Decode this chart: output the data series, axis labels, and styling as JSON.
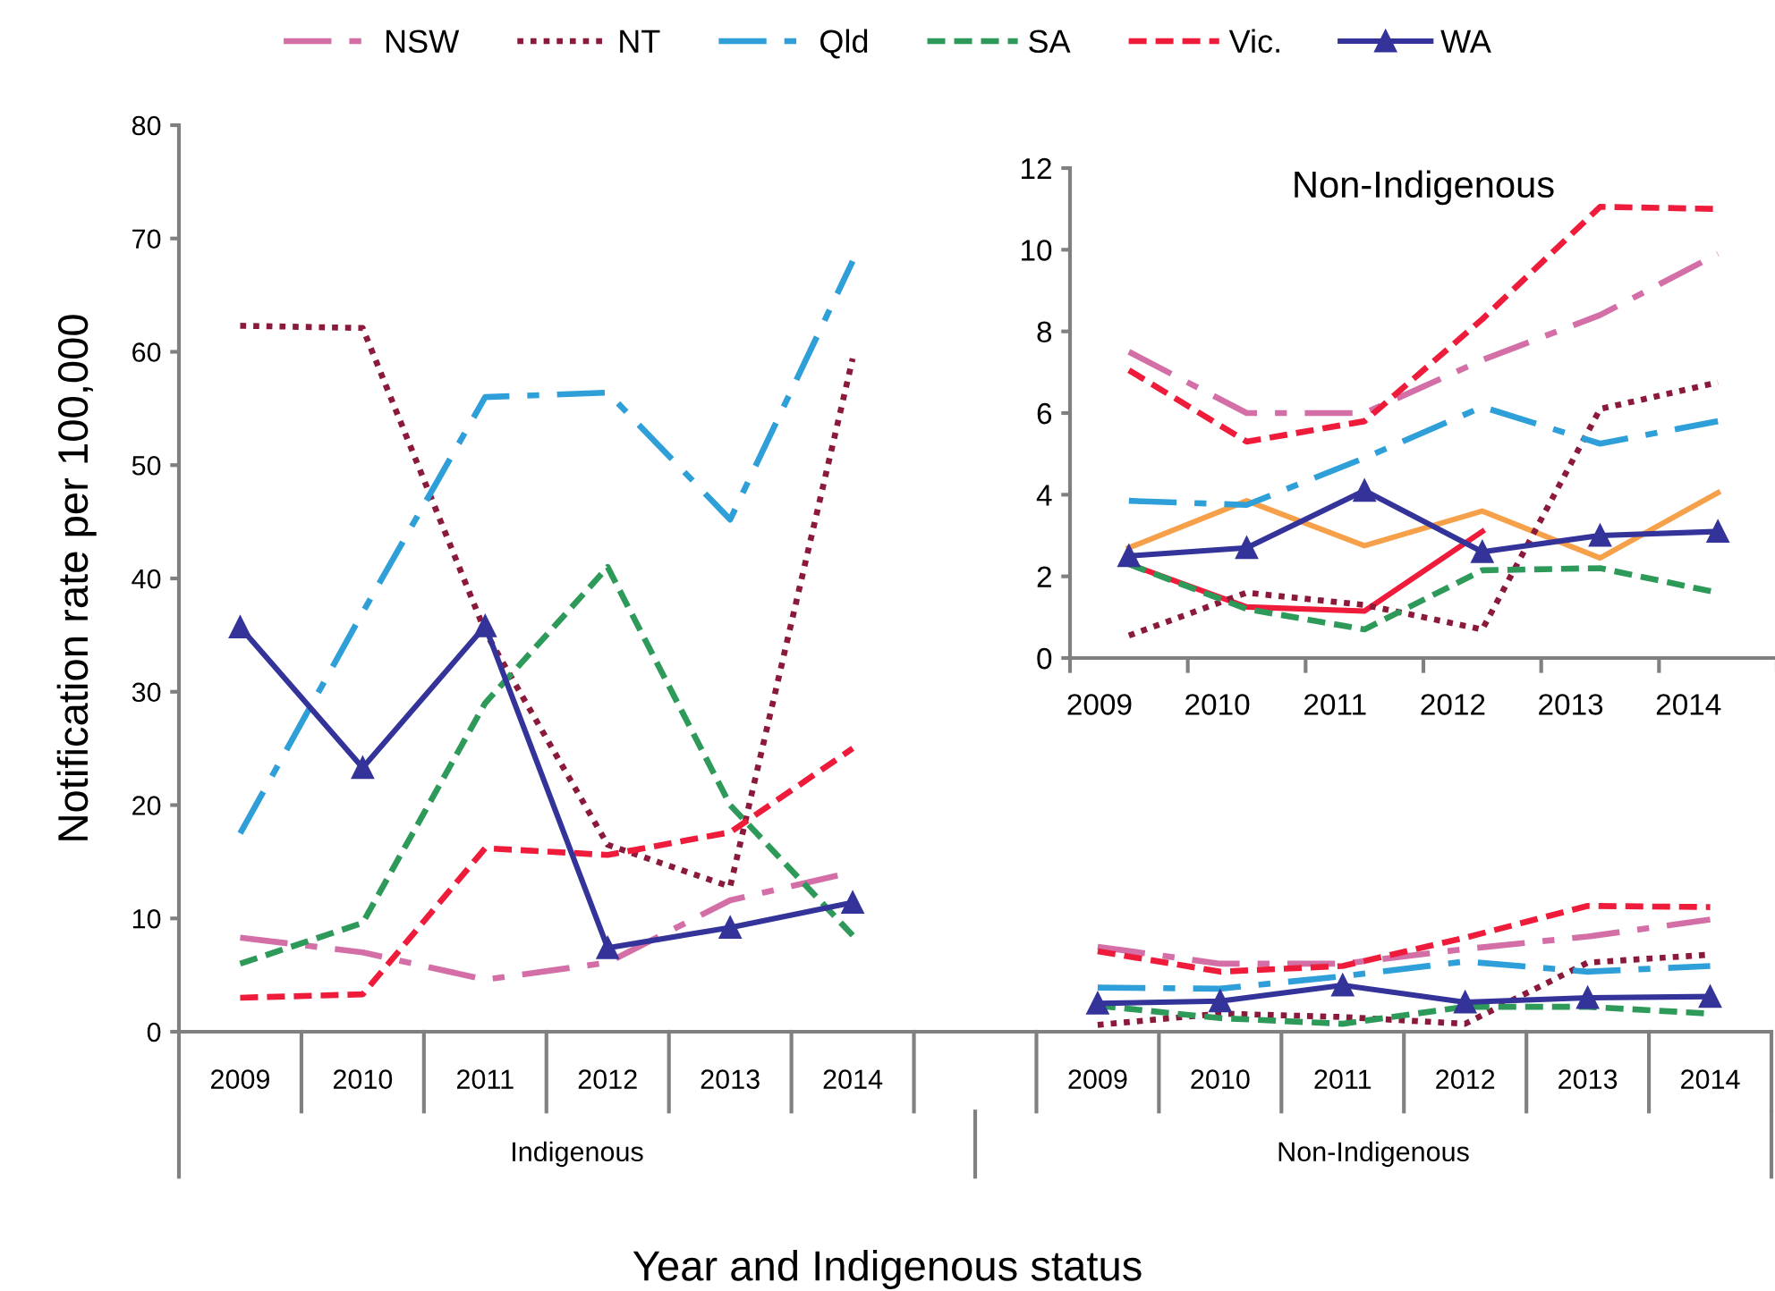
{
  "chart_data": [
    {
      "type": "line",
      "ylabel": "Notification rate per 100,000",
      "xlabel": "Year and Indigenous status",
      "categories": [
        "2009",
        "2010",
        "2011",
        "2012",
        "2013",
        "2014",
        null,
        "2009",
        "2010",
        "2011",
        "2012",
        "2013",
        "2014"
      ],
      "annotations": [
        "Indigenous",
        "Non-Indigenous"
      ],
      "ylim": [
        0,
        80
      ],
      "yticks": [
        0,
        10,
        20,
        30,
        40,
        50,
        60,
        70,
        80
      ],
      "legend": "top",
      "series": [
        {
          "name": "NSW",
          "color": "#d36ea7",
          "line_style": "dashdot",
          "values": [
            8.3,
            7.0,
            4.6,
            6.1,
            11.6,
            14.1,
            null,
            7.5,
            6.0,
            6.0,
            7.3,
            8.4,
            9.9
          ]
        },
        {
          "name": "NT",
          "color": "#8b1a3a",
          "line_style": "dotted",
          "values": [
            62.3,
            62.1,
            35.3,
            16.5,
            12.8,
            59.4,
            null,
            0.6,
            1.6,
            1.3,
            0.7,
            6.1,
            6.8
          ]
        },
        {
          "name": "Qld",
          "color": "#2e9fd8",
          "line_style": "dashdot",
          "values": [
            17.5,
            37.0,
            56.0,
            56.4,
            45.2,
            68.0,
            null,
            3.9,
            3.8,
            4.9,
            6.2,
            5.3,
            5.8
          ]
        },
        {
          "name": "SA",
          "color": "#2e9a5a",
          "line_style": "dashed",
          "values": [
            6.0,
            9.6,
            29.0,
            41.0,
            20.0,
            8.5,
            null,
            2.3,
            1.2,
            0.7,
            2.2,
            2.2,
            1.6
          ]
        },
        {
          "name": "Vic.",
          "color": "#ee1c3a",
          "line_style": "dashed",
          "values": [
            3.0,
            3.3,
            16.2,
            15.6,
            17.6,
            25.0,
            null,
            7.1,
            5.3,
            5.8,
            8.3,
            11.1,
            11.0
          ]
        },
        {
          "name": "WA",
          "color": "#33339a",
          "line_style": "solid",
          "marker": "triangle",
          "values": [
            35.7,
            23.3,
            35.8,
            7.4,
            9.2,
            11.4,
            null,
            2.5,
            2.7,
            4.1,
            2.6,
            3.0,
            3.1
          ]
        }
      ]
    },
    {
      "type": "line",
      "title": "Non-Indigenous",
      "categories": [
        "2009",
        "2010",
        "2011",
        "2012",
        "2013",
        "2014"
      ],
      "ylim": [
        0,
        12
      ],
      "yticks": [
        0,
        2,
        4,
        6,
        8,
        10,
        12
      ],
      "series": [
        {
          "color": "#f7a04a",
          "line_style": "solid",
          "values": [
            2.7,
            3.85,
            2.75,
            3.6,
            2.45,
            4.05
          ]
        },
        {
          "color": "#ee1c3a",
          "line_style": "solid",
          "values": [
            2.3,
            1.25,
            1.15,
            3.1,
            null,
            null
          ]
        },
        {
          "color": "#d36ea7",
          "line_style": "dashdot",
          "values": [
            7.5,
            6.0,
            6.0,
            7.3,
            8.4,
            9.9
          ]
        },
        {
          "color": "#8b1a3a",
          "line_style": "dotted",
          "values": [
            0.55,
            1.6,
            1.3,
            0.7,
            6.1,
            6.75
          ]
        },
        {
          "color": "#2e9fd8",
          "line_style": "dashdot",
          "values": [
            3.85,
            3.75,
            4.9,
            6.15,
            5.25,
            5.8
          ]
        },
        {
          "color": "#2e9a5a",
          "line_style": "dashed",
          "values": [
            2.3,
            1.2,
            0.7,
            2.15,
            2.2,
            1.6
          ]
        },
        {
          "color": "#ee1c3a",
          "line_style": "dashed",
          "values": [
            7.05,
            5.3,
            5.8,
            8.3,
            11.05,
            11.0
          ]
        },
        {
          "color": "#33339a",
          "line_style": "solid",
          "marker": "triangle",
          "values": [
            2.5,
            2.7,
            4.1,
            2.6,
            3.0,
            3.1
          ]
        }
      ]
    }
  ]
}
